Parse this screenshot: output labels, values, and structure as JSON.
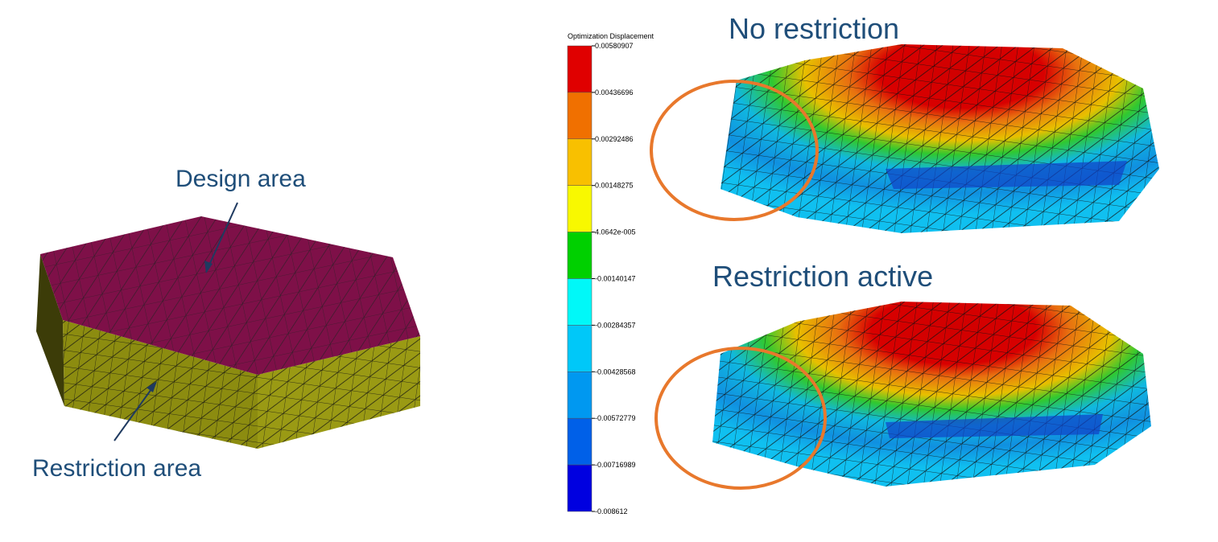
{
  "left": {
    "design_label": "Design area",
    "restriction_label": "Restriction area"
  },
  "legend": {
    "title": "Optimization Displacement",
    "labels": [
      "0.00580907",
      "0.00436696",
      "0.00292486",
      "0.00148275",
      "4.0642e-005",
      "-0.00140147",
      "-0.00284357",
      "-0.00428568",
      "-0.00572779",
      "-0.00716989",
      "-0.008612"
    ]
  },
  "results": {
    "top_title": "No restriction",
    "bottom_title": "Restriction active"
  }
}
